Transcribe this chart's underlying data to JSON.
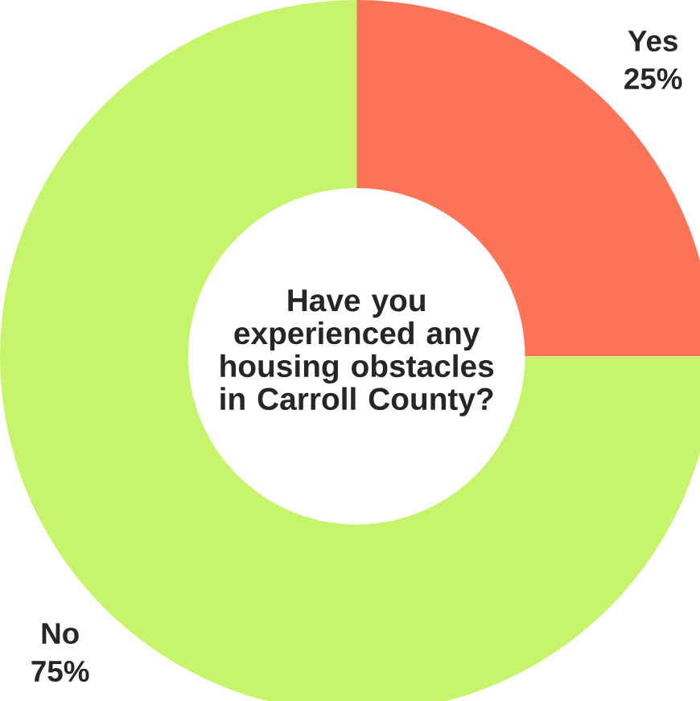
{
  "chart_data": {
    "type": "donut",
    "title": "Have you experienced any housing obstacles in Carroll County?",
    "categories": [
      "Yes",
      "No"
    ],
    "values": [
      25,
      75
    ],
    "value_labels": [
      "25%",
      "75%"
    ],
    "colors": [
      "#fe7458",
      "#c6f56b"
    ]
  }
}
